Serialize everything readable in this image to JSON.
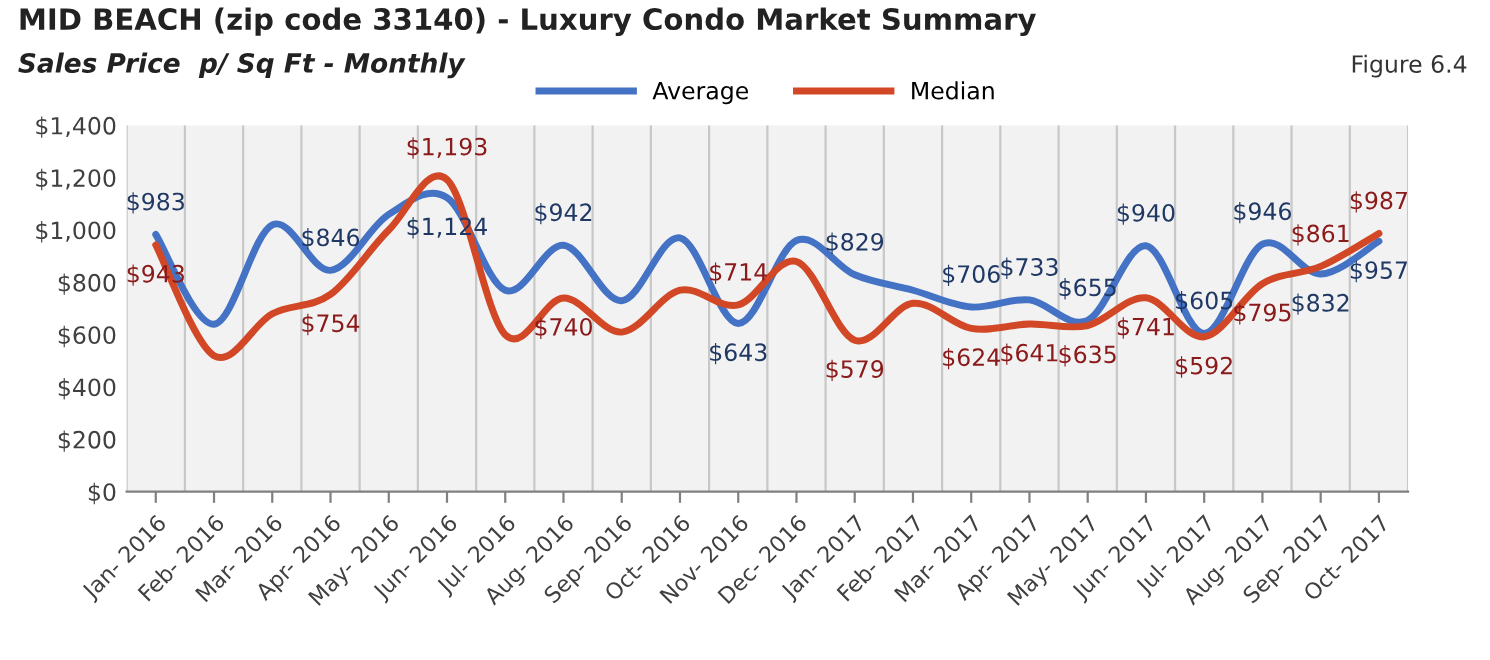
{
  "chart_data": {
    "type": "line",
    "title": "MID BEACH (zip code 33140) - Luxury Condo Market Summary",
    "subtitle": "Sales Price  p/ Sq Ft - Monthly",
    "annotations": [
      "Figure 6.4"
    ],
    "categories": [
      "Jan- 2016",
      "Feb- 2016",
      "Mar- 2016",
      "Apr- 2016",
      "May- 2016",
      "Jun- 2016",
      "Jul- 2016",
      "Aug- 2016",
      "Sep- 2016",
      "Oct- 2016",
      "Nov- 2016",
      "Dec- 2016",
      "Jan- 2017",
      "Feb- 2017",
      "Mar- 2017",
      "Apr- 2017",
      "May- 2017",
      "Jun- 2017",
      "Jul- 2017",
      "Aug- 2017",
      "Sep- 2017",
      "Oct- 2017"
    ],
    "series": [
      {
        "name": "Average",
        "color": "#4472c4",
        "values": [
          983,
          640,
          1020,
          846,
          1060,
          1124,
          770,
          942,
          730,
          970,
          643,
          960,
          829,
          770,
          706,
          733,
          655,
          940,
          605,
          946,
          832,
          957
        ],
        "value_labels": [
          "$983",
          null,
          null,
          "$846",
          null,
          "$1,124",
          null,
          "$942",
          null,
          null,
          "$643",
          null,
          "$829",
          null,
          "$706",
          "$733",
          "$655",
          "$940",
          "$605",
          "$946",
          "$832",
          "$957"
        ]
      },
      {
        "name": "Median",
        "color": "#d24726",
        "values": [
          943,
          520,
          680,
          754,
          1000,
          1193,
          600,
          740,
          610,
          770,
          714,
          880,
          579,
          720,
          624,
          641,
          635,
          741,
          592,
          795,
          861,
          987
        ],
        "value_labels": [
          "$943",
          null,
          null,
          "$754",
          null,
          "$1,193",
          null,
          "$740",
          null,
          null,
          "$714",
          null,
          "$579",
          null,
          "$624",
          "$641",
          "$635",
          "$741",
          "$592",
          "$795",
          "$861",
          "$987"
        ]
      }
    ],
    "ylim": [
      0,
      1400
    ],
    "yticks": [
      {
        "value": 0,
        "label": "$0"
      },
      {
        "value": 200,
        "label": "$200"
      },
      {
        "value": 400,
        "label": "$400"
      },
      {
        "value": 600,
        "label": "$600"
      },
      {
        "value": 800,
        "label": "$800"
      },
      {
        "value": 1000,
        "label": "$1,000"
      },
      {
        "value": 1200,
        "label": "$1,200"
      },
      {
        "value": 1400,
        "label": "$1,400"
      }
    ],
    "grid": "x",
    "legend": "top",
    "marker": "none",
    "line_style": "solid"
  }
}
